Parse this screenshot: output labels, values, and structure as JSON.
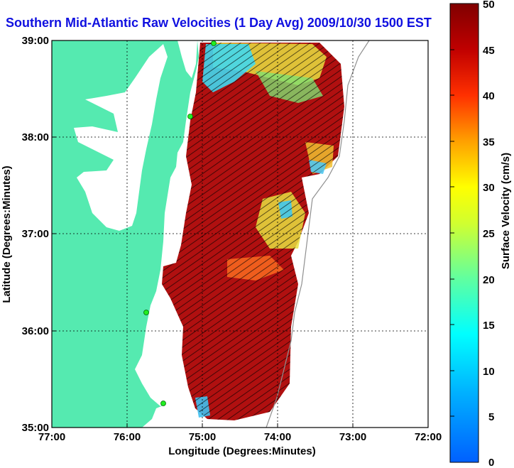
{
  "title": "Southern Mid-Atlantic Raw Velocities (1 Day Avg) 2009/10/30 1500 EST",
  "colors": {
    "land": "#55eab0",
    "water": "#ffffff",
    "title": "#1010e0",
    "station": "#22ee22"
  },
  "axes": {
    "xlabel": "Longitude (Degrees:Minutes)",
    "ylabel": "Latitude (Degrees:Minutes)",
    "xticks": [
      "77:00",
      "76:00",
      "75:00",
      "74:00",
      "73:00",
      "72:00"
    ],
    "yticks": [
      "39:00",
      "38:00",
      "37:00",
      "36:00",
      "35:00"
    ]
  },
  "colorbar": {
    "label": "Surface Velocity (cm/s)",
    "ticks": [
      "50",
      "45",
      "40",
      "35",
      "30",
      "25",
      "20",
      "15",
      "10",
      "5",
      "0"
    ]
  }
}
